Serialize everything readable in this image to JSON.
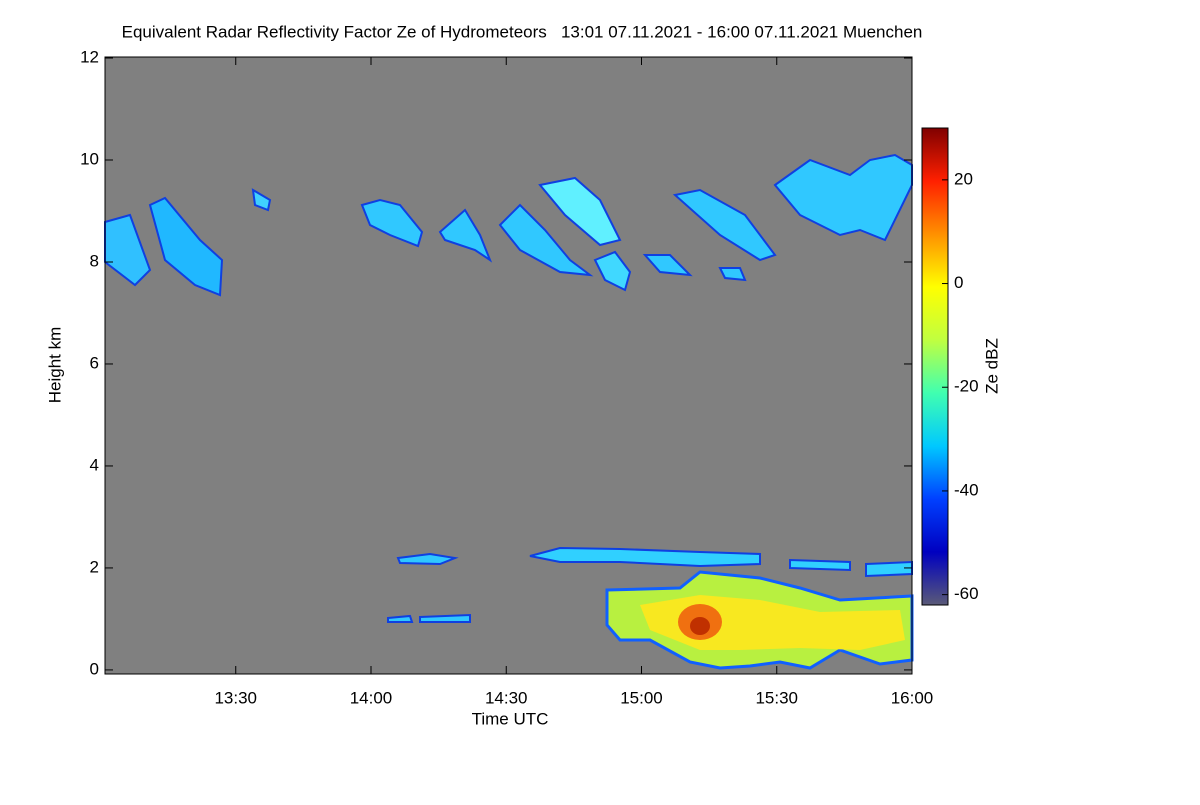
{
  "chart_data": {
    "type": "time-height",
    "title": "Equivalent Radar Reflectivity Factor Ze of Hydrometeors   13:01 07.11.2021 - 16:00 07.11.2021 Muenchen",
    "x_label": "Time UTC",
    "y_label": "Height km",
    "xlim": [
      781,
      960
    ],
    "xticks": [
      {
        "value": 810,
        "label": "13:30"
      },
      {
        "value": 840,
        "label": "14:00"
      },
      {
        "value": 870,
        "label": "14:30"
      },
      {
        "value": 900,
        "label": "15:00"
      },
      {
        "value": 930,
        "label": "15:30"
      },
      {
        "value": 960,
        "label": "16:00"
      }
    ],
    "ylim": [
      -0.08,
      12.02
    ],
    "yticks": [
      0,
      2,
      4,
      6,
      8,
      10,
      12
    ],
    "colorbar": {
      "label": "Ze dBZ",
      "lim": [
        -62,
        30
      ],
      "ticks": [
        -60,
        -40,
        -20,
        0,
        20
      ],
      "colors": [
        "#5a5a78",
        "#0000c0",
        "#0040ff",
        "#00c8ff",
        "#40ffb0",
        "#c0ff40",
        "#ffff00",
        "#ff9000",
        "#ff2000",
        "#800000"
      ]
    }
  }
}
